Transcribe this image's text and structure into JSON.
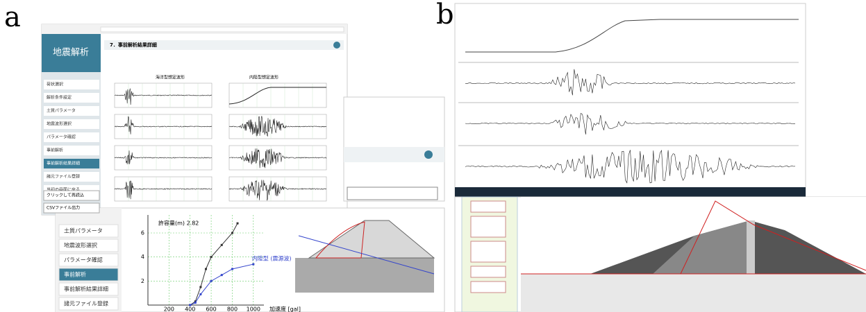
{
  "labels": {
    "a": "a",
    "b": "b"
  },
  "panel_a": {
    "app_title": "地震解析",
    "section_title": "7．事前解析結果詳細",
    "column_titles": [
      "海洋型想定波形",
      "内陸型想定波形"
    ],
    "sidebar": [
      "荷状選択",
      "解析条件設定",
      "土質パラメータ",
      "地震波形選択",
      "パラメータ確認",
      "事前解析",
      "事前解析結果詳細",
      "諸元ファイル登録",
      "当初の画面に戻る"
    ],
    "buttons": [
      "クリックして再読込",
      "CSVファイル出力"
    ],
    "lower": {
      "sidebar": [
        "土質パラメータ",
        "地震波形選択",
        "パラメータ確認",
        "事前解析",
        "事前解析結果詳細",
        "諸元ファイル登録"
      ],
      "chart": {
        "annotation": "許容量(m) 2.82",
        "x_label": "加速度 [gal]",
        "xlim": [
          0,
          1100
        ],
        "xticks": [
          200,
          400,
          600,
          800,
          1000
        ],
        "ylim": [
          0,
          7.5
        ],
        "yticks": [
          2,
          4,
          6
        ],
        "series": [
          {
            "color": "#333333",
            "x": [
              400,
              450,
              500,
              550,
              600,
              700,
              800,
              850
            ],
            "values": [
              0,
              0.3,
              1.5,
              3,
              4,
              5,
              6,
              6.8
            ]
          },
          {
            "name": "内陸型 (震源波)",
            "color": "#3344cc",
            "x": [
              400,
              450,
              500,
              600,
              700,
              800,
              1000
            ],
            "values": [
              0,
              0.2,
              0.9,
              2,
              2.5,
              3,
              3.4
            ]
          }
        ]
      }
    }
  }
}
